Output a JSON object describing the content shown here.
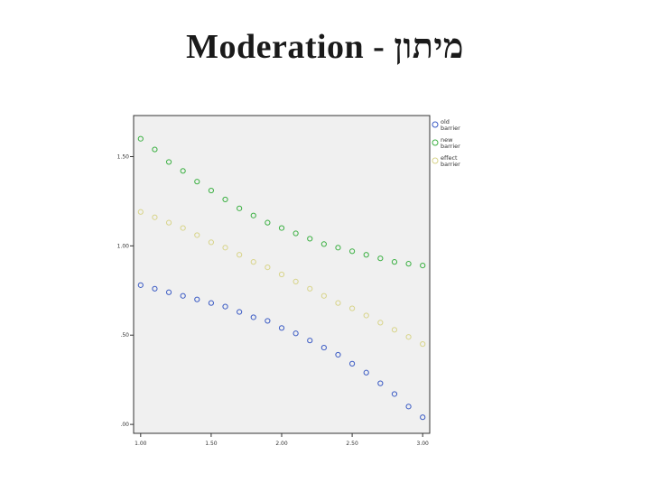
{
  "slide": {
    "title": "Moderation - מיתון"
  },
  "chart_data": {
    "type": "scatter",
    "title": "",
    "xlabel": "",
    "ylabel": "",
    "xlim": [
      0.95,
      3.05
    ],
    "ylim": [
      -0.05,
      1.73
    ],
    "x_ticks": [
      1.0,
      1.5,
      2.0,
      2.5,
      3.0
    ],
    "x_tick_labels": [
      "1.00",
      "1.50",
      "2.00",
      "2.50",
      "3.00"
    ],
    "y_ticks": [
      0.0,
      0.5,
      1.0,
      1.5
    ],
    "y_tick_labels": [
      ".00",
      ".50",
      "1.00",
      "1.50"
    ],
    "grid": false,
    "legend_position": "right",
    "marker": "open-circle",
    "plot_background": "#f0f0f0",
    "x": [
      1.0,
      1.1,
      1.2,
      1.3,
      1.4,
      1.5,
      1.6,
      1.7,
      1.8,
      1.9,
      2.0,
      2.1,
      2.2,
      2.3,
      2.4,
      2.5,
      2.6,
      2.7,
      2.8,
      2.9,
      3.0
    ],
    "series": [
      {
        "name": "old barrier",
        "color": "#3b5bc4",
        "values": [
          0.78,
          0.76,
          0.74,
          0.72,
          0.7,
          0.68,
          0.66,
          0.63,
          0.6,
          0.58,
          0.54,
          0.51,
          0.47,
          0.43,
          0.39,
          0.34,
          0.29,
          0.23,
          0.17,
          0.1,
          0.04
        ]
      },
      {
        "name": "new barrier",
        "color": "#3cb043",
        "values": [
          1.6,
          1.54,
          1.47,
          1.42,
          1.36,
          1.31,
          1.26,
          1.21,
          1.17,
          1.13,
          1.1,
          1.07,
          1.04,
          1.01,
          0.99,
          0.97,
          0.95,
          0.93,
          0.91,
          0.9,
          0.89
        ]
      },
      {
        "name": "effect barrier",
        "color": "#d8d48a",
        "values": [
          1.19,
          1.16,
          1.13,
          1.1,
          1.06,
          1.02,
          0.99,
          0.95,
          0.91,
          0.88,
          0.84,
          0.8,
          0.76,
          0.72,
          0.68,
          0.65,
          0.61,
          0.57,
          0.53,
          0.49,
          0.45
        ]
      }
    ]
  }
}
